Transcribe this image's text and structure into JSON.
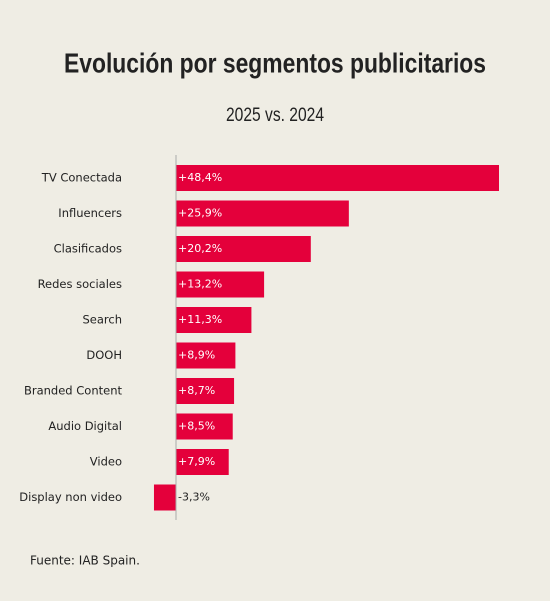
{
  "chart_data": {
    "type": "bar",
    "orientation": "horizontal",
    "title": "Evolución por segmentos publicitarios",
    "subtitle": "2025 vs. 2024",
    "categories": [
      "TV Conectada",
      "Influencers",
      "Clasificados",
      "Redes sociales",
      "Search",
      "DOOH",
      "Branded Content",
      "Audio Digital",
      "Video",
      "Display non video"
    ],
    "values": [
      48.4,
      25.9,
      20.2,
      13.2,
      11.3,
      8.9,
      8.7,
      8.5,
      7.9,
      -3.3
    ],
    "value_labels": [
      "+48,4%",
      "+25,9%",
      "+20,2%",
      "+13,2%",
      "+11,3%",
      "+8,9%",
      "+8,7%",
      "+8,5%",
      "+7,9%",
      "-3,3%"
    ],
    "color": "#e4003b",
    "source": "Fuente: IAB Spain."
  }
}
